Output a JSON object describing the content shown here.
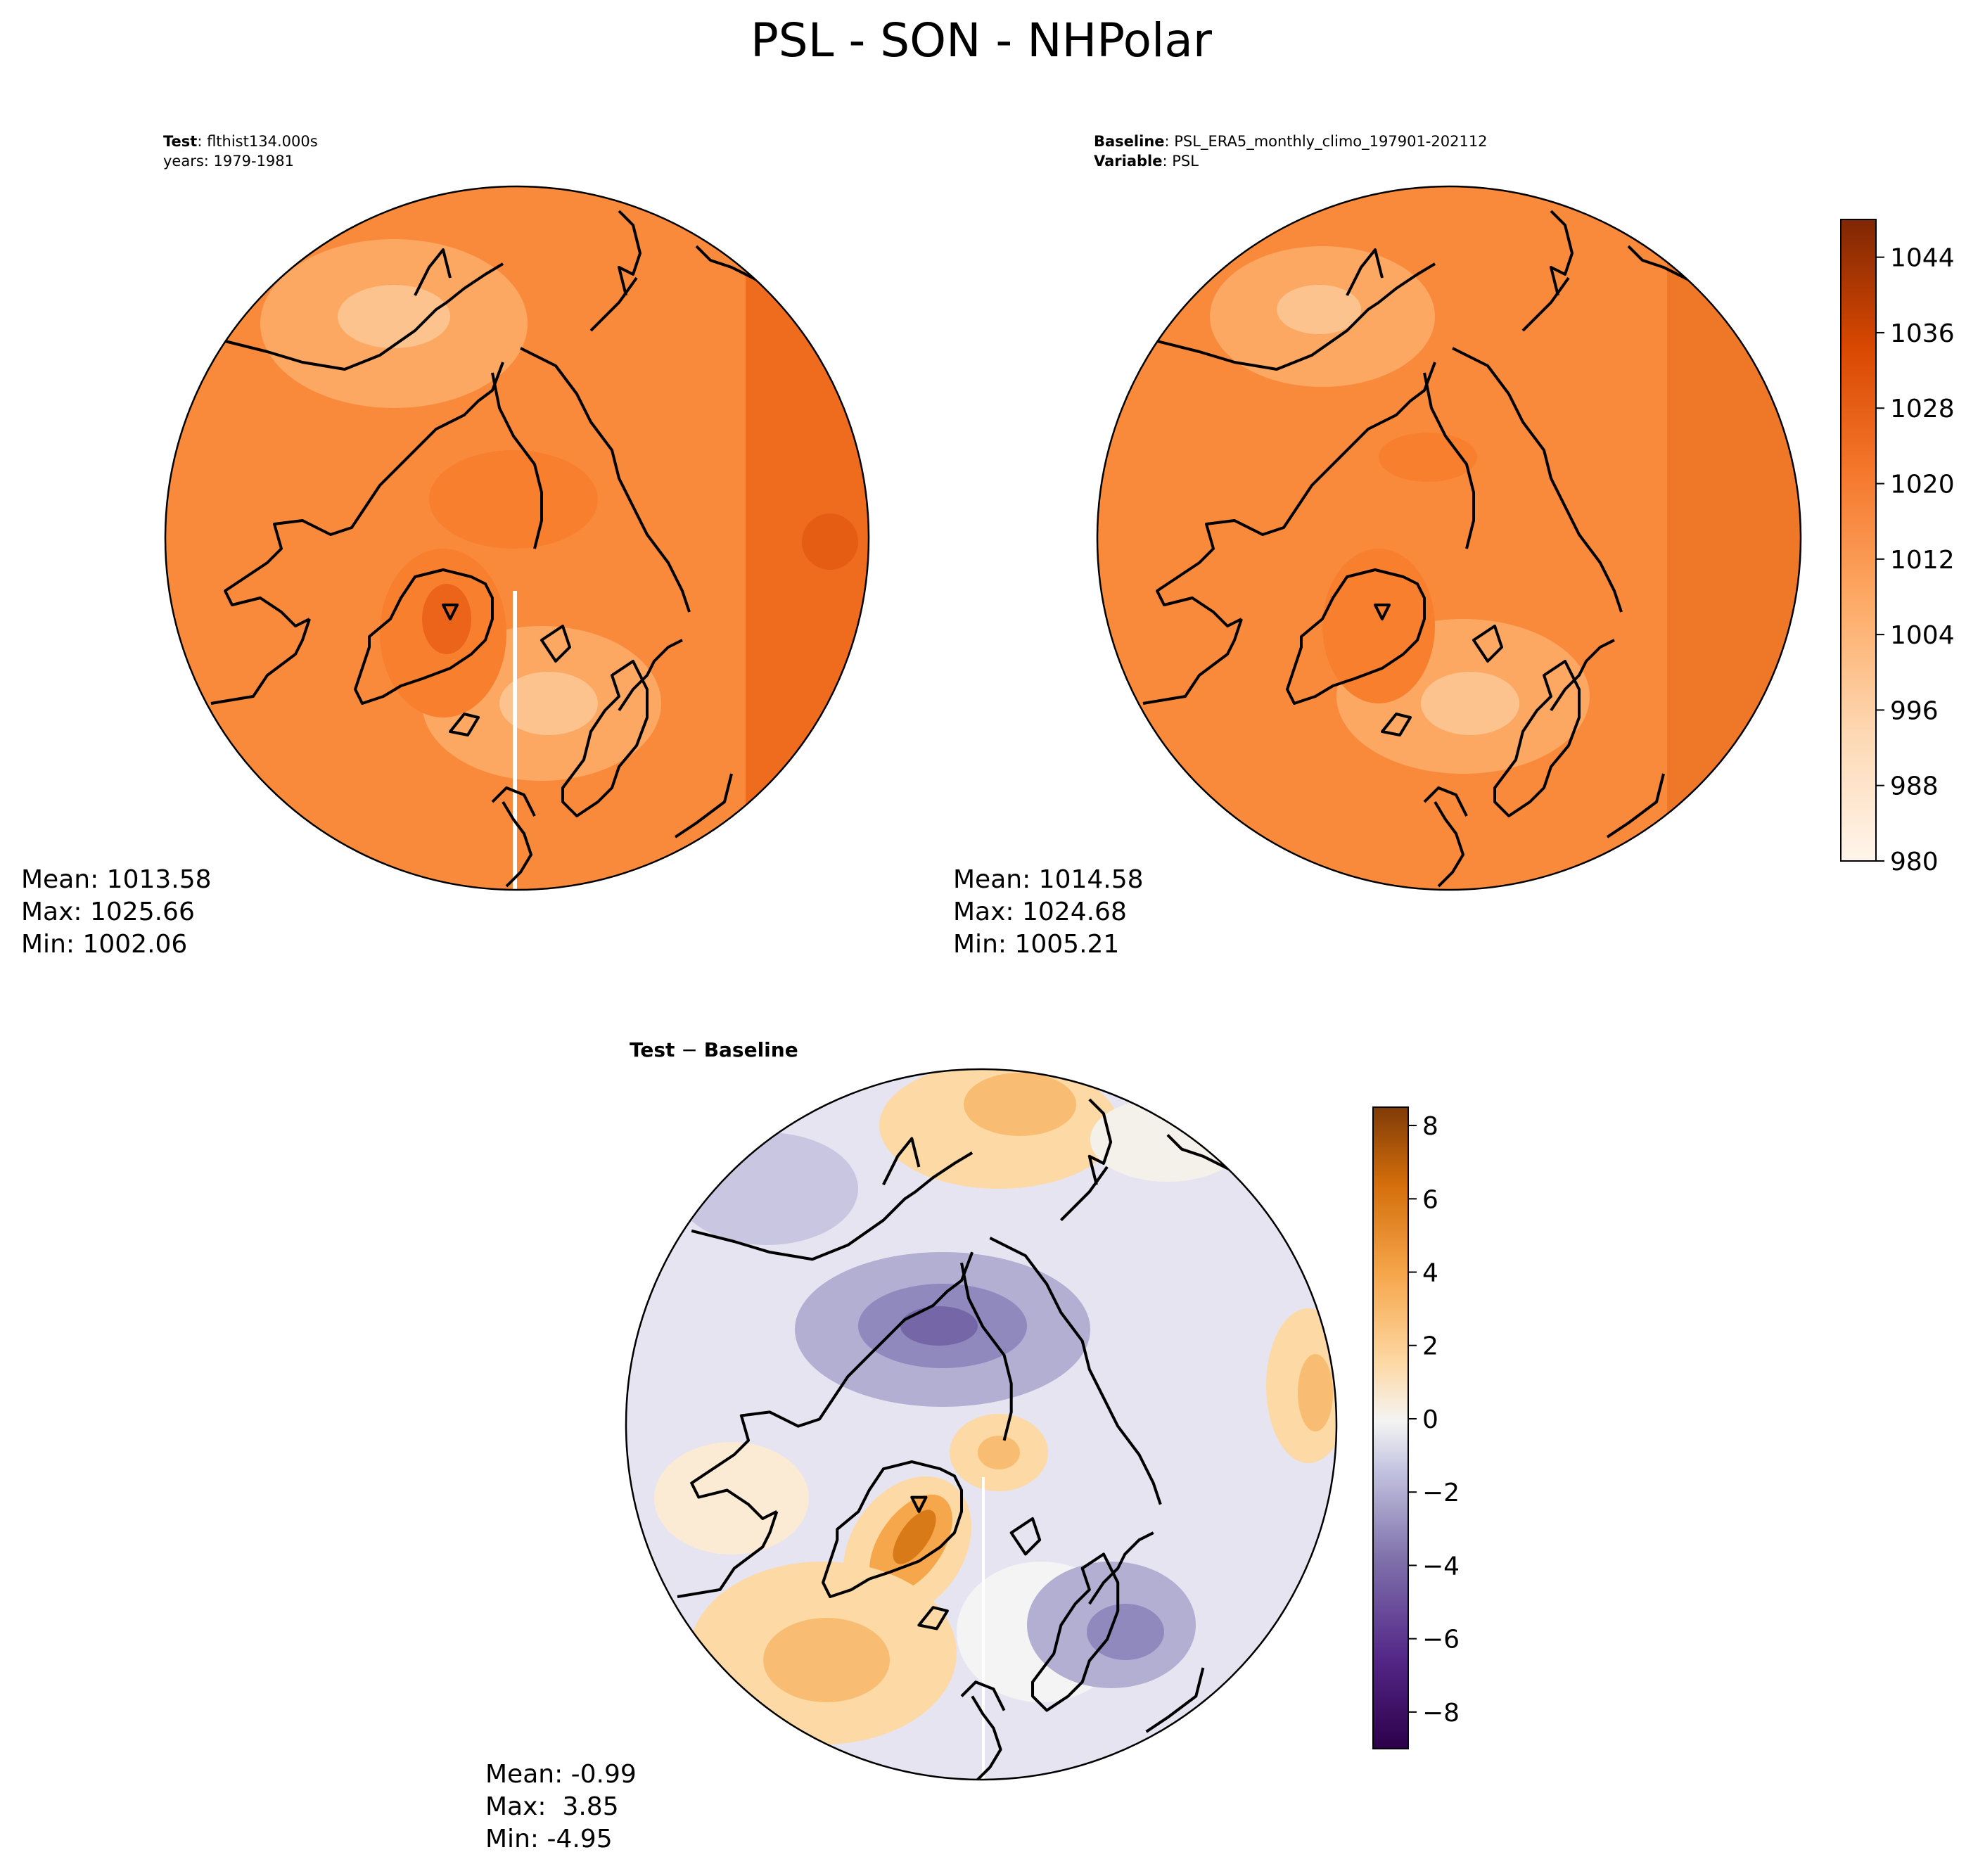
{
  "figure": {
    "title": "PSL - SON - NHPolar"
  },
  "chart_data": [
    {
      "type": "heatmap",
      "projection": "north-polar-stereographic",
      "colormap": "Oranges",
      "panel": "test",
      "label_key_1": "Test",
      "label_value_1": ": flthist134.000s",
      "label_line_2": "years: 1979-1981",
      "stats": [
        "Mean: 1013.58",
        "Max: 1025.66",
        "Min: 1002.06"
      ]
    },
    {
      "type": "heatmap",
      "projection": "north-polar-stereographic",
      "colormap": "Oranges",
      "panel": "baseline",
      "label_key_1": "Baseline",
      "label_value_1": ": PSL_ERA5_monthly_climo_197901-202112",
      "label_key_2": "Variable",
      "label_value_2": ": PSL",
      "stats": [
        "Mean: 1014.58",
        "Max: 1024.68",
        "Min: 1005.21"
      ],
      "colorbar": {
        "min": 980,
        "max": 1048,
        "step": 4,
        "ticks": [
          "1044",
          "1036",
          "1028",
          "1020",
          "1012",
          "1004",
          "996",
          "988",
          "980"
        ],
        "tick_values": [
          1044,
          1036,
          1028,
          1020,
          1012,
          1004,
          996,
          988,
          980
        ]
      }
    },
    {
      "type": "heatmap",
      "projection": "north-polar-stereographic",
      "colormap": "PuOr_r",
      "panel": "difference",
      "label_key_1": "Test",
      "label_value_1": " − ",
      "label_key_1b": "Baseline",
      "stats": [
        "Mean: -0.99",
        "Max:  3.85",
        "Min: -4.95"
      ],
      "colorbar": {
        "min": -9,
        "max": 8.5,
        "ticks": [
          "8",
          "6",
          "4",
          "2",
          "0",
          "−2",
          "−4",
          "−6",
          "−8"
        ],
        "tick_values": [
          8,
          6,
          4,
          2,
          0,
          -2,
          -4,
          -6,
          -8
        ]
      }
    }
  ]
}
